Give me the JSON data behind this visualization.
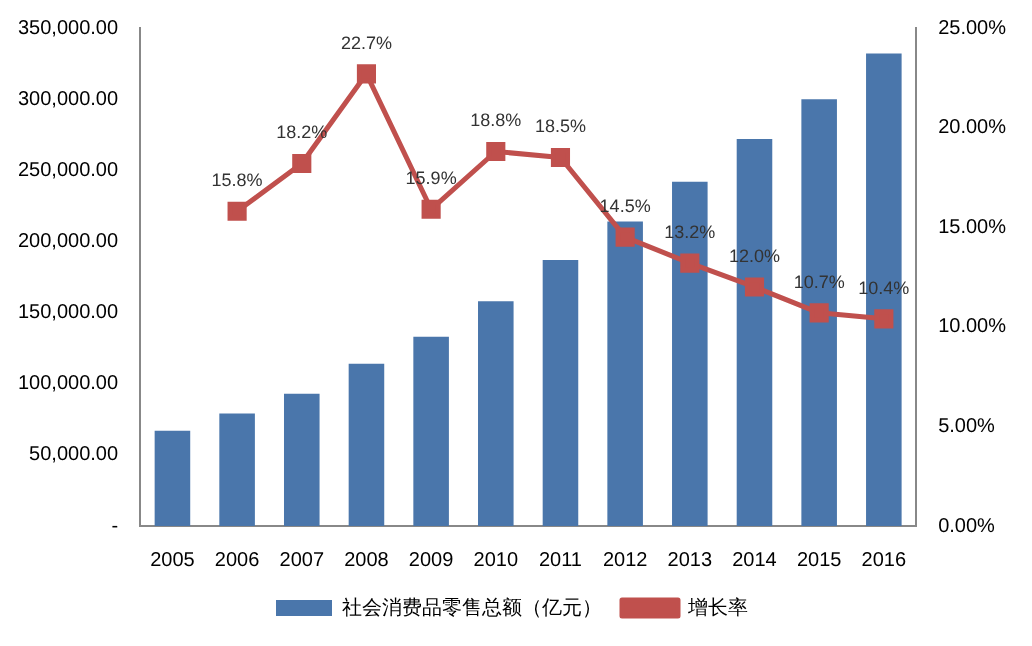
{
  "chart_data": {
    "type": "bar",
    "categories": [
      "2005",
      "2006",
      "2007",
      "2008",
      "2009",
      "2010",
      "2011",
      "2012",
      "2013",
      "2014",
      "2015",
      "2016"
    ],
    "series": [
      {
        "name": "社会消费品零售总额（亿元）",
        "color": "#4a76ab",
        "values": [
          67000,
          79000,
          93000,
          114000,
          133000,
          158000,
          187000,
          214000,
          242000,
          272000,
          300000,
          332000
        ]
      },
      {
        "name": "增长率",
        "type": "line",
        "axis": "y2",
        "color": "#c0504d",
        "marker": "square",
        "values": [
          null,
          15.8,
          18.2,
          22.7,
          15.9,
          18.8,
          18.5,
          14.5,
          13.2,
          12.0,
          10.7,
          10.4
        ],
        "value_labels": [
          null,
          "15.8%",
          "18.2%",
          "22.7%",
          "15.9%",
          "18.8%",
          "18.5%",
          "14.5%",
          "13.2%",
          "12.0%",
          "10.7%",
          "10.4%"
        ]
      }
    ],
    "ylim": [
      0,
      350000
    ],
    "yticks": [
      {
        "value": 0,
        "label": "-"
      },
      {
        "value": 50000,
        "label": "50,000.00"
      },
      {
        "value": 100000,
        "label": "100,000.00"
      },
      {
        "value": 150000,
        "label": "150,000.00"
      },
      {
        "value": 200000,
        "label": "200,000.00"
      },
      {
        "value": 250000,
        "label": "250,000.00"
      },
      {
        "value": 300000,
        "label": "300,000.00"
      },
      {
        "value": 350000,
        "label": "350,000.00"
      }
    ],
    "y2lim": [
      0,
      25
    ],
    "y2ticks": [
      {
        "value": 0,
        "label": "0.00%"
      },
      {
        "value": 5,
        "label": "5.00%"
      },
      {
        "value": 10,
        "label": "10.00%"
      },
      {
        "value": 15,
        "label": "15.00%"
      },
      {
        "value": 20,
        "label": "20.00%"
      },
      {
        "value": 25,
        "label": "25.00%"
      }
    ],
    "grid": false,
    "legend": "bottom"
  }
}
